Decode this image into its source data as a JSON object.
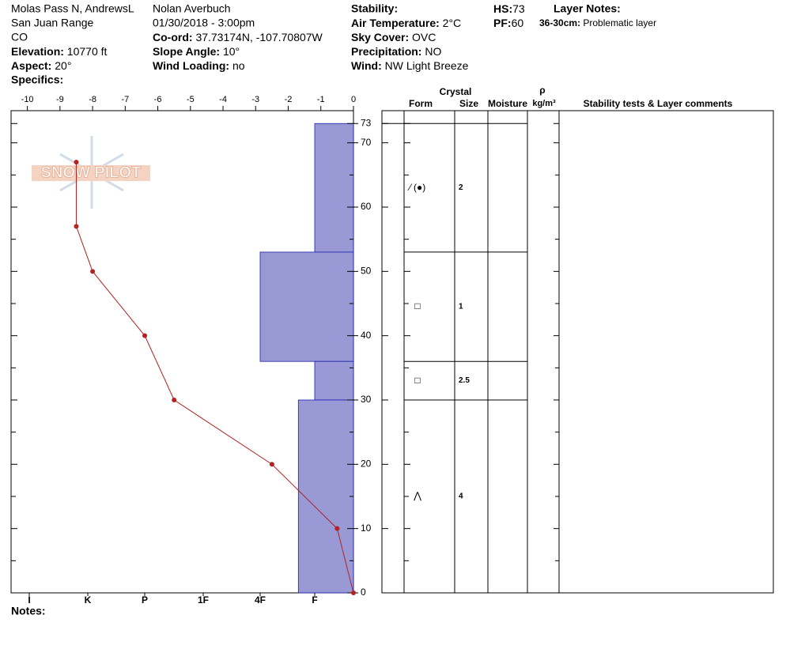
{
  "header": {
    "site": "Molas Pass N, AndrewsL",
    "range": "San Juan Range",
    "state": "CO",
    "elevation": {
      "label": "Elevation:",
      "value": "10770 ft"
    },
    "aspect": {
      "label": "Aspect:",
      "value": "20°"
    },
    "specifics": {
      "label": "Specifics:"
    },
    "observer": "Nolan Averbuch",
    "datetime": "01/30/2018 - 3:00pm",
    "coord": {
      "label": "Co-ord:",
      "value": "37.73174N, -107.70807W"
    },
    "slope": {
      "label": "Slope Angle:",
      "value": "10°"
    },
    "wind_loading": {
      "label": "Wind Loading:",
      "value": "no"
    },
    "stability": {
      "label": "Stability:"
    },
    "air_temp": {
      "label": "Air Temperature:",
      "value": "2°C"
    },
    "sky": {
      "label": "Sky Cover:",
      "value": "OVC"
    },
    "precip": {
      "label": "Precipitation:",
      "value": "NO"
    },
    "wind": {
      "label": "Wind:",
      "value": "NW Light Breeze"
    },
    "hs": {
      "label": "HS:",
      "value": 73
    },
    "pf": {
      "label": "PF:",
      "value": 60
    },
    "layer_notes": {
      "label": "Layer Notes:",
      "range": "36-30cm:",
      "text": "Problematic layer"
    },
    "notes": {
      "label": "Notes:"
    },
    "logo": "SNOW PILOT"
  },
  "chart_data": {
    "type": "snow-profile",
    "ylim": [
      0,
      75
    ],
    "yticks": [
      0,
      10,
      20,
      30,
      40,
      50,
      60,
      70,
      73
    ],
    "minor_yticks": [
      5,
      15,
      25,
      35,
      45,
      55,
      65
    ],
    "temp_xlim": [
      -10.5,
      0
    ],
    "temp_xticks": [
      -10,
      -9,
      -8,
      -7,
      -6,
      -5,
      -4,
      -3,
      -2,
      -1,
      0
    ],
    "hardness_ticks": [
      {
        "value": 6,
        "label": "I"
      },
      {
        "value": 5,
        "label": "K"
      },
      {
        "value": 4,
        "label": "P"
      },
      {
        "value": 3,
        "label": "1F"
      },
      {
        "value": 2,
        "label": "4F"
      },
      {
        "value": 1,
        "label": "F"
      }
    ],
    "temperature": {
      "color": "#b22222",
      "depth": [
        0,
        10,
        20,
        30,
        40,
        50,
        57,
        67
      ],
      "temp": [
        0,
        -0.5,
        -2.5,
        -5.5,
        -6.4,
        -8,
        -8.5,
        -8.5
      ]
    },
    "layers": {
      "color": "#9999d6",
      "top": [
        73,
        53,
        36,
        30
      ],
      "bottom": [
        53,
        36,
        30,
        0
      ],
      "hardness": [
        1,
        2,
        1,
        1.3
      ],
      "form": [
        "⁄ (●)",
        "□",
        "□",
        "⋀"
      ],
      "size": [
        2,
        1,
        2.5,
        4
      ]
    },
    "columns": {
      "crystal": "Crystal",
      "form": "Form",
      "size": "Size",
      "moisture": "Moisture",
      "rho": "ρ",
      "density_unit": "kg/m³",
      "comments": "Stability tests & Layer comments"
    }
  }
}
